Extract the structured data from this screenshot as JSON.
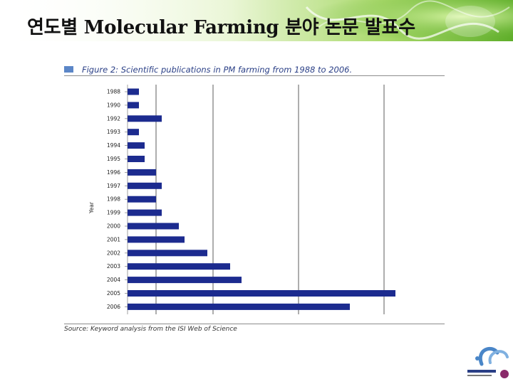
{
  "slide": {
    "title": "연도별 Molecular Farming 분야 논문 발표수"
  },
  "figure": {
    "caption": "Figure 2: Scientific publications in PM farming from 1988 to 2006.",
    "source": "Source: Keyword analysis from the ISI Web of Science"
  },
  "colors": {
    "bar": "#1c2b8f",
    "caption": "#2a3f86",
    "header_green": "#7bbf3a"
  },
  "chart_data": {
    "type": "bar",
    "orientation": "horizontal",
    "ylabel": "Year",
    "xlabel": "",
    "categories": [
      "1988",
      "1990",
      "1992",
      "1993",
      "1994",
      "1995",
      "1996",
      "1997",
      "1998",
      "1999",
      "2000",
      "2001",
      "2002",
      "2003",
      "2004",
      "2005",
      "2006"
    ],
    "values": [
      2,
      2,
      6,
      2,
      3,
      3,
      5,
      6,
      5,
      6,
      9,
      10,
      14,
      18,
      20,
      47,
      39
    ],
    "xlim": [
      0,
      50
    ],
    "grid": true,
    "gridlines_at": [
      5,
      15,
      30,
      45
    ]
  }
}
